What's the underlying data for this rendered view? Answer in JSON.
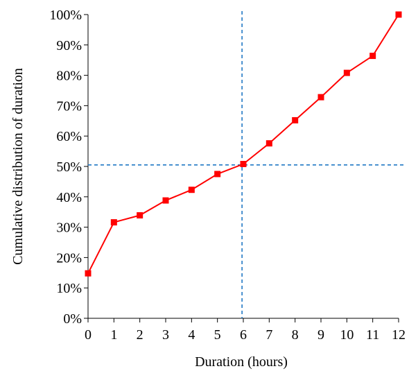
{
  "chart_data": {
    "type": "line",
    "title": "",
    "xlabel": "Duration (hours)",
    "ylabel": "Cumulative distribution of duration",
    "xlim": [
      0,
      12
    ],
    "ylim": [
      0,
      1
    ],
    "x_ticks": [
      "0",
      "1",
      "2",
      "3",
      "4",
      "5",
      "6",
      "7",
      "8",
      "9",
      "10",
      "11",
      "12"
    ],
    "y_ticks": [
      "0%",
      "10%",
      "20%",
      "30%",
      "40%",
      "50%",
      "60%",
      "70%",
      "80%",
      "90%",
      "100%"
    ],
    "grid": false,
    "legend": "none",
    "series": [
      {
        "color": "#ff0000",
        "marker": "square",
        "x": [
          0,
          1,
          2,
          3,
          4,
          5,
          6,
          7,
          8,
          9,
          10,
          11,
          12
        ],
        "y": [
          0.148,
          0.316,
          0.339,
          0.388,
          0.423,
          0.475,
          0.508,
          0.576,
          0.652,
          0.728,
          0.808,
          0.864,
          1.0
        ]
      }
    ],
    "reference_lines": [
      {
        "orientation": "horizontal",
        "value": 0.505,
        "color": "#1f77c4",
        "style": "dashed"
      },
      {
        "orientation": "vertical",
        "value": 5.95,
        "color": "#1f77c4",
        "style": "dashed"
      }
    ]
  }
}
